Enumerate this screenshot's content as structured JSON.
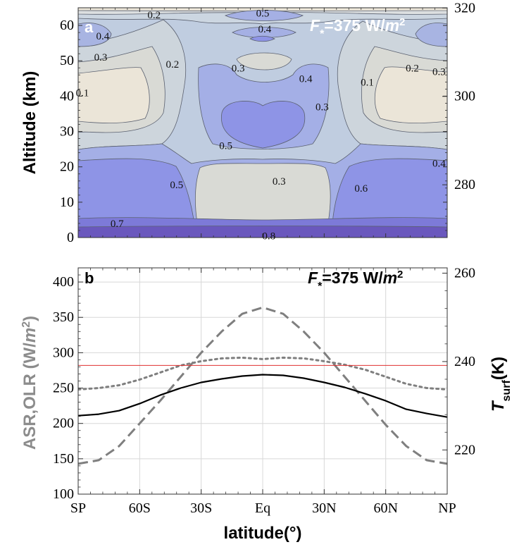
{
  "chart_data": [
    {
      "panel": "a",
      "type": "heatmap",
      "annotation": "F*=375 W/m2",
      "ylabel": "Altitude (km)",
      "ylim": [
        0,
        65
      ],
      "yticks": [
        "0",
        "10",
        "20",
        "30",
        "40",
        "50",
        "60"
      ],
      "xlim": [
        -90,
        90
      ],
      "contour_labels": [
        {
          "text": "0.2",
          "lat": -53,
          "alt": 63
        },
        {
          "text": "0.5",
          "lat": 0,
          "alt": 63.5
        },
        {
          "text": "0.4",
          "lat": 1,
          "alt": 59
        },
        {
          "text": "0.4",
          "lat": -78,
          "alt": 57
        },
        {
          "text": "0.3",
          "lat": -79,
          "alt": 51
        },
        {
          "text": "0.2",
          "lat": -44,
          "alt": 49
        },
        {
          "text": "0.3",
          "lat": -12,
          "alt": 48
        },
        {
          "text": "0.4",
          "lat": 21,
          "alt": 45
        },
        {
          "text": "0.2",
          "lat": 73,
          "alt": 48
        },
        {
          "text": "0.3",
          "lat": 86,
          "alt": 47
        },
        {
          "text": "0.1",
          "lat": 51,
          "alt": 44
        },
        {
          "text": "0.1",
          "lat": -88,
          "alt": 41
        },
        {
          "text": "0.3",
          "lat": 29,
          "alt": 37
        },
        {
          "text": "0.5",
          "lat": -18,
          "alt": 26
        },
        {
          "text": "0.4",
          "lat": 86,
          "alt": 21
        },
        {
          "text": "0.5",
          "lat": -42,
          "alt": 15
        },
        {
          "text": "0.3",
          "lat": 8,
          "alt": 16
        },
        {
          "text": "0.6",
          "lat": 48,
          "alt": 14
        },
        {
          "text": "0.7",
          "lat": -71,
          "alt": 4
        },
        {
          "text": "0.8",
          "lat": 3,
          "alt": 0.5
        }
      ]
    },
    {
      "panel": "b",
      "type": "line",
      "annotation": "F*=375 W/m2",
      "xlabel": "latitude(°)",
      "ylabel_left": "ASR,OLR (W/m2)",
      "ylabel_right": "Tsurf(K)",
      "x_ticks": [
        "SP",
        "60S",
        "30S",
        "Eq",
        "30N",
        "60N",
        "NP"
      ],
      "x_tick_values": [
        -90,
        -60,
        -30,
        0,
        30,
        60,
        90
      ],
      "y_left_ticks": [
        100,
        150,
        200,
        250,
        300,
        350,
        400
      ],
      "y_left_lim": [
        100,
        420
      ],
      "y_right_ticks": [
        220,
        240,
        260,
        280,
        300,
        320
      ],
      "x": [
        -90,
        -80,
        -70,
        -60,
        -50,
        -40,
        -30,
        -20,
        -10,
        0,
        10,
        20,
        30,
        40,
        50,
        60,
        70,
        80,
        90
      ],
      "series": [
        {
          "values": [
            143,
            148,
            168,
            200,
            232,
            266,
            300,
            330,
            355,
            364,
            355,
            330,
            300,
            266,
            232,
            198,
            168,
            148,
            143
          ],
          "color": "#7f7f7f",
          "dash": "long",
          "axis": "left"
        },
        {
          "values": [
            248,
            250,
            254,
            262,
            272,
            282,
            288,
            292,
            293,
            291,
            293,
            292,
            288,
            283,
            276,
            266,
            256,
            250,
            248
          ],
          "color": "#7f7f7f",
          "dash": "dot",
          "axis": "left"
        },
        {
          "values": [
            211,
            213,
            218,
            228,
            240,
            250,
            258,
            263,
            267,
            269,
            268,
            264,
            258,
            251,
            242,
            232,
            220,
            214,
            209
          ],
          "color": "#000000",
          "dash": "solid",
          "axis": "left"
        },
        {
          "values": [
            282,
            282,
            282,
            282,
            282,
            282,
            282,
            282,
            282,
            282,
            282,
            282,
            282,
            282,
            282,
            282,
            282,
            282,
            282
          ],
          "color": "#e03030",
          "dash": "solid",
          "axis": "left"
        }
      ]
    }
  ],
  "labels": {
    "panel_a": "a",
    "panel_b": "b",
    "F": "F",
    "sub": "*",
    "eq375": "=375 W/",
    "m": "m",
    "sup2": "2",
    "alt_axis": "Altitude (km)",
    "lat_axis": "latitude(°)",
    "asr_text": "ASR,OLR (W/",
    "asr_m": "m",
    "asr_sup": "2",
    "asr_close": ")",
    "t_main": "T",
    "t_sub": "surf",
    "t_unit": "(K)"
  },
  "colors": {
    "pale": "#ebe5d8",
    "c1": "#d9d9d4",
    "c2": "#c8d3dd",
    "c3": "#b4c4e0",
    "c4": "#a4afe6",
    "c5": "#8e94e6",
    "c6": "#7d7ad8",
    "c7": "#6a58bd"
  }
}
